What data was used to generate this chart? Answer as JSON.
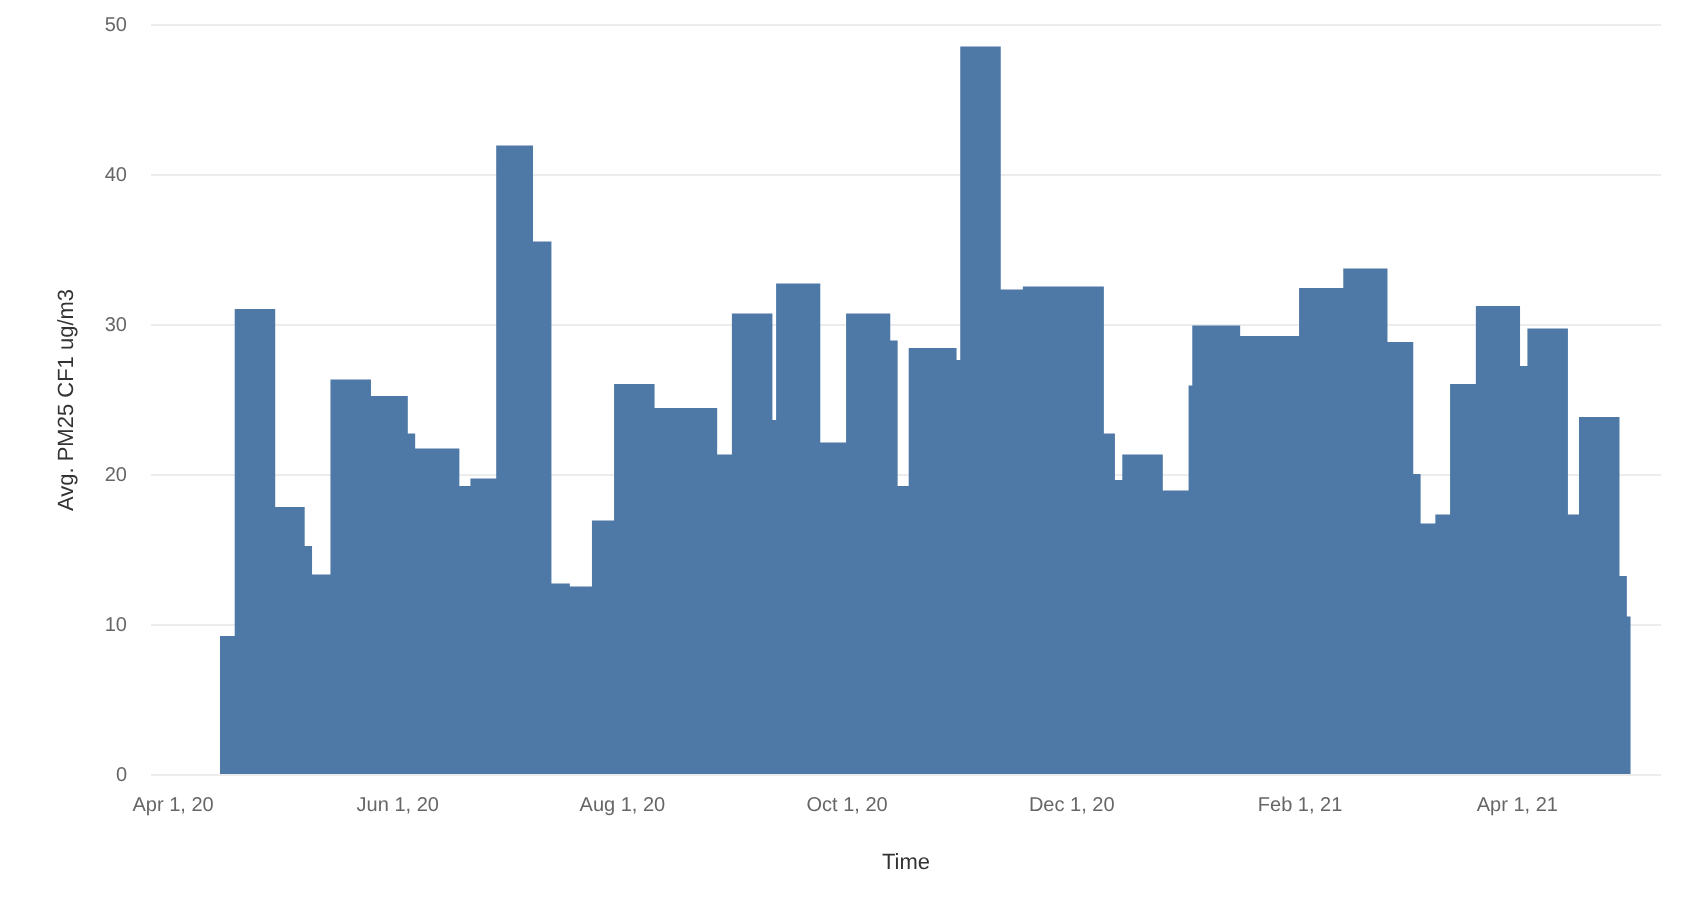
{
  "chart_data": {
    "type": "area",
    "xlabel": "Time",
    "ylabel": "Avg. PM25 CF1 ug/m3",
    "color": "#4e79a7",
    "x": [
      "2020-04-14",
      "2020-04-18",
      "2020-04-29",
      "2020-05-07",
      "2020-05-09",
      "2020-05-14",
      "2020-05-25",
      "2020-06-04",
      "2020-06-06",
      "2020-06-18",
      "2020-06-21",
      "2020-06-28",
      "2020-07-08",
      "2020-07-13",
      "2020-07-18",
      "2020-07-24",
      "2020-07-30",
      "2020-08-10",
      "2020-08-27",
      "2020-08-31",
      "2020-09-11",
      "2020-09-12",
      "2020-09-24",
      "2020-10-01",
      "2020-10-13",
      "2020-10-15",
      "2020-10-18",
      "2020-10-31",
      "2020-11-01",
      "2020-11-12",
      "2020-11-18",
      "2020-12-10",
      "2020-12-13",
      "2020-12-15",
      "2020-12-26",
      "2021-01-02",
      "2021-01-03",
      "2021-01-16",
      "2021-02-01",
      "2021-02-13",
      "2021-02-25",
      "2021-03-04",
      "2021-03-06",
      "2021-03-10",
      "2021-03-14",
      "2021-03-21",
      "2021-04-02",
      "2021-04-04",
      "2021-04-15",
      "2021-04-18",
      "2021-04-29",
      "2021-05-01",
      "2021-05-02"
    ],
    "values": [
      9.2,
      31,
      17.8,
      15.2,
      13.3,
      26.3,
      25.2,
      22.7,
      21.7,
      19.2,
      19.7,
      41.9,
      35.5,
      12.7,
      12.5,
      16.9,
      26,
      24.4,
      21.3,
      30.7,
      23.6,
      32.7,
      22.1,
      30.7,
      28.9,
      19.2,
      28.4,
      27.6,
      48.5,
      32.3,
      32.5,
      22.7,
      19.6,
      21.3,
      18.9,
      25.9,
      29.9,
      29.2,
      32.4,
      33.7,
      28.8,
      20,
      16.7,
      17.3,
      26,
      31.2,
      27.2,
      29.7,
      17.3,
      23.8,
      13.2,
      10.5,
      10.5
    ],
    "xlim": [
      "2020-03-26",
      "2021-05-10"
    ],
    "xticks": [
      {
        "value": "2020-04-01",
        "label": "Apr 1, 20"
      },
      {
        "value": "2020-06-01",
        "label": "Jun 1, 20"
      },
      {
        "value": "2020-08-01",
        "label": "Aug 1, 20"
      },
      {
        "value": "2020-10-01",
        "label": "Oct 1, 20"
      },
      {
        "value": "2020-12-01",
        "label": "Dec 1, 20"
      },
      {
        "value": "2021-02-01",
        "label": "Feb 1, 21"
      },
      {
        "value": "2021-04-01",
        "label": "Apr 1, 21"
      }
    ],
    "ylim": [
      0,
      50
    ],
    "yticks": [
      0,
      10,
      20,
      30,
      40,
      50
    ],
    "grid": "y"
  }
}
